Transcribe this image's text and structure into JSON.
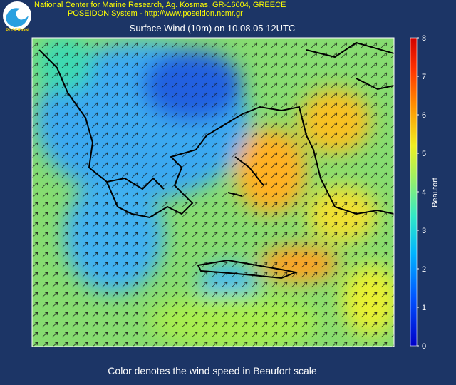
{
  "header": {
    "logo": "POSEIDON",
    "line1": "National Center for Marine Research, Ag. Kosmas, GR-16604, GREECE",
    "line2": "POSEIDON System - http://www.poseidon.ncmr.gr"
  },
  "title": "Surface Wind (10m) on 10.08.05 12UTC",
  "colorbar": {
    "label": "Beaufort",
    "lim": [
      0,
      8
    ],
    "ticks": [
      0,
      1,
      2,
      3,
      4,
      5,
      6,
      7,
      8
    ]
  },
  "caption": "Color denotes the wind speed in Beaufort scale"
}
